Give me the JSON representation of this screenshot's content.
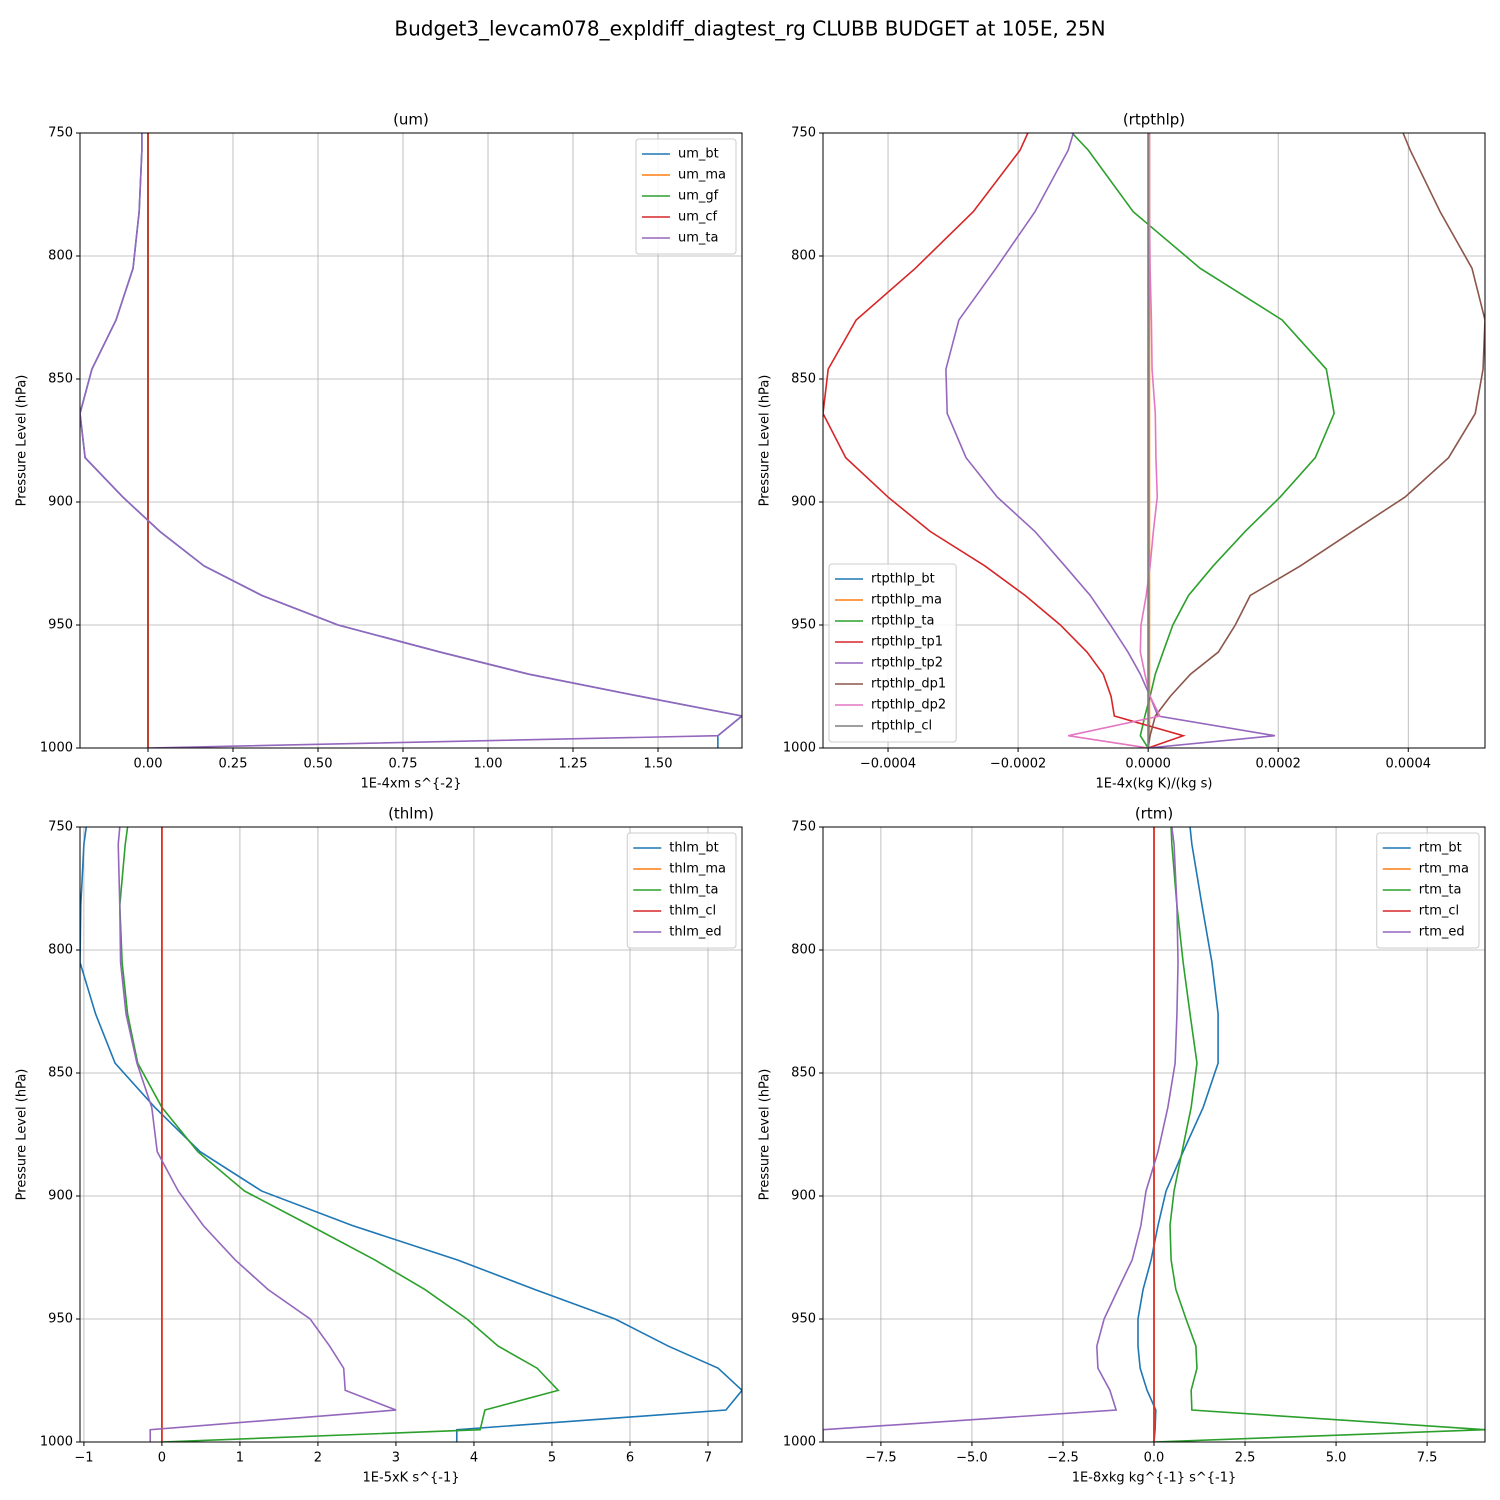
{
  "title": "Budget3_levcam078_expldiff_diagtest_rg CLUBB BUDGET at 105E, 25N",
  "chart_data": [
    {
      "type": "line",
      "title": "(um)",
      "x_label": "1E-4xm s^{-2}",
      "y_label": "Pressure Level (hPa)",
      "xlim": [
        -0.2,
        1.747
      ],
      "ylim": [
        1000,
        750
      ],
      "xticks": [
        {
          "value": 0,
          "label": "0.00"
        },
        {
          "value": 0.25,
          "label": "0.25"
        },
        {
          "value": 0.5,
          "label": "0.50"
        },
        {
          "value": 0.75,
          "label": "0.75"
        },
        {
          "value": 1,
          "label": "1.00"
        },
        {
          "value": 1.25,
          "label": "1.25"
        },
        {
          "value": 1.5,
          "label": "1.50"
        }
      ],
      "yticks": [
        750,
        800,
        850,
        900,
        950,
        1000
      ],
      "grid": true,
      "legend": "upper right",
      "y": [
        750,
        757,
        782,
        805,
        826,
        846,
        864,
        882,
        898,
        912,
        926,
        938,
        950,
        961,
        970,
        979,
        987,
        995,
        1000
      ],
      "series": [
        {
          "name": "um_bt",
          "color": "#1f77b4",
          "values": [
            -0.018,
            -0.018,
            -0.026,
            -0.044,
            -0.094,
            -0.165,
            -0.2,
            -0.185,
            -0.074,
            0.035,
            0.165,
            0.335,
            0.559,
            0.859,
            1.12,
            1.447,
            1.747,
            1.676,
            1.676
          ]
        },
        {
          "name": "um_ma",
          "color": "#ff7f0e",
          "values": [
            0,
            0,
            0,
            0,
            0,
            0,
            0,
            0,
            0,
            0,
            0,
            0,
            0,
            0,
            0,
            0,
            0,
            0,
            0
          ]
        },
        {
          "name": "um_gf",
          "color": "#2ca02c",
          "values": [
            0,
            0,
            0,
            0,
            0,
            0,
            0,
            0,
            0,
            0,
            0,
            0,
            0,
            0,
            0,
            0,
            0,
            0,
            0
          ]
        },
        {
          "name": "um_cf",
          "color": "#d62728",
          "values": [
            0,
            0,
            0,
            0,
            0,
            0,
            0,
            0,
            0,
            0,
            0,
            0,
            0,
            0,
            0,
            0,
            0,
            0,
            0
          ]
        },
        {
          "name": "um_ta",
          "color": "#9467bd",
          "values": [
            -0.018,
            -0.018,
            -0.026,
            -0.044,
            -0.094,
            -0.165,
            -0.2,
            -0.185,
            -0.074,
            0.035,
            0.165,
            0.335,
            0.559,
            0.859,
            1.12,
            1.447,
            1.747,
            1.676,
            0
          ]
        }
      ]
    },
    {
      "type": "line",
      "title": "(rtpthlp)",
      "x_label": "1E-4x(kg K)/(kg s)",
      "y_label": "Pressure Level (hPa)",
      "xlim": [
        -0.0005,
        0.000518
      ],
      "ylim": [
        1000,
        750
      ],
      "xticks": [
        {
          "value": -0.0004,
          "label": "−0.0004"
        },
        {
          "value": -0.0002,
          "label": "−0.0002"
        },
        {
          "value": 0,
          "label": "0.0000"
        },
        {
          "value": 0.0002,
          "label": "0.0002"
        },
        {
          "value": 0.0004,
          "label": "0.0004"
        }
      ],
      "yticks": [
        750,
        800,
        850,
        900,
        950,
        1000
      ],
      "grid": true,
      "legend": "lower left",
      "y": [
        750,
        757,
        782,
        805,
        826,
        846,
        864,
        882,
        898,
        912,
        926,
        938,
        950,
        961,
        970,
        979,
        987,
        995,
        1000
      ],
      "series": [
        {
          "name": "rtpthlp_bt",
          "color": "#1f77b4",
          "values": [
            0,
            0,
            0,
            0,
            0,
            0,
            0,
            0,
            0,
            0,
            0,
            0,
            0,
            0,
            0,
            0,
            0,
            0,
            0
          ]
        },
        {
          "name": "rtpthlp_ma",
          "color": "#ff7f0e",
          "values": [
            2e-06,
            2e-06,
            2e-06,
            2e-06,
            2e-06,
            2e-06,
            2e-06,
            2e-06,
            2e-06,
            2e-06,
            2e-06,
            2e-06,
            2e-06,
            2e-06,
            2e-06,
            2e-06,
            2e-06,
            2e-06,
            0
          ]
        },
        {
          "name": "rtpthlp_ta",
          "color": "#2ca02c",
          "values": [
            -0.000117,
            -9.2e-05,
            -2.3e-05,
            8e-05,
            0.000206,
            0.000274,
            0.000286,
            0.000257,
            0.000203,
            0.000149,
            0.0001,
            6.2e-05,
            3.8e-05,
            2.3e-05,
            1.1e-05,
            3e-06,
            -5e-06,
            -1.2e-05,
            0
          ]
        },
        {
          "name": "rtpthlp_tp1",
          "color": "#d62728",
          "values": [
            -0.000185,
            -0.000197,
            -0.000269,
            -0.000358,
            -0.000449,
            -0.000492,
            -0.0005,
            -0.000465,
            -0.0004,
            -0.000335,
            -0.000251,
            -0.000189,
            -0.000135,
            -9.4e-05,
            -6.9e-05,
            -5.7e-05,
            -5.2e-05,
            5.4e-05,
            0
          ]
        },
        {
          "name": "rtpthlp_tp2",
          "color": "#9467bd",
          "values": [
            -0.000115,
            -0.000123,
            -0.000174,
            -0.000234,
            -0.000291,
            -0.000311,
            -0.000309,
            -0.00028,
            -0.000232,
            -0.000174,
            -0.000128,
            -8.9e-05,
            -5.8e-05,
            -3.1e-05,
            -1.2e-05,
            3e-06,
            1.5e-05,
            0.000195,
            0
          ]
        },
        {
          "name": "rtpthlp_dp1",
          "color": "#8c564b",
          "values": [
            0.000392,
            0.000403,
            0.000449,
            0.000498,
            0.000518,
            0.000515,
            0.000503,
            0.000462,
            0.000395,
            0.000314,
            0.000234,
            0.000157,
            0.000134,
            0.000108,
            6.5e-05,
            3.4e-05,
            1.1e-05,
            3e-06,
            0
          ]
        },
        {
          "name": "rtpthlp_dp2",
          "color": "#e377c2",
          "values": [
            2e-06,
            2e-06,
            2e-06,
            3e-06,
            5e-06,
            6e-06,
            1.1e-05,
            1.2e-05,
            1.4e-05,
            8e-06,
            3e-06,
            -3e-06,
            -1.1e-05,
            -1.2e-05,
            -5e-06,
            3e-06,
            1.8e-05,
            -0.000123,
            0
          ]
        },
        {
          "name": "rtpthlp_cl",
          "color": "#7f7f7f",
          "values": [
            0,
            0,
            0,
            0,
            0,
            0,
            0,
            0,
            0,
            0,
            0,
            0,
            0,
            0,
            0,
            0,
            0,
            0,
            0
          ]
        }
      ]
    },
    {
      "type": "line",
      "title": "(thlm)",
      "x_label": "1E-5xK s^{-1}",
      "y_label": "Pressure Level (hPa)",
      "xlim": [
        -1.05,
        7.436
      ],
      "ylim": [
        1000,
        750
      ],
      "xticks": [
        {
          "value": -1,
          "label": "−1"
        },
        0,
        1,
        2,
        3,
        4,
        5,
        6,
        7
      ],
      "yticks": [
        750,
        800,
        850,
        900,
        950,
        1000
      ],
      "grid": true,
      "legend": "upper right",
      "y": [
        750,
        757,
        782,
        805,
        826,
        846,
        864,
        882,
        898,
        912,
        926,
        938,
        950,
        961,
        970,
        979,
        987,
        995,
        1000
      ],
      "series": [
        {
          "name": "thlm_bt",
          "color": "#1f77b4",
          "values": [
            -0.97,
            -1.0,
            -1.04,
            -1.05,
            -0.85,
            -0.6,
            -0.09,
            0.49,
            1.28,
            2.44,
            3.79,
            4.78,
            5.81,
            6.49,
            7.13,
            7.436,
            7.23,
            3.78,
            3.78
          ]
        },
        {
          "name": "thlm_ma",
          "color": "#ff7f0e",
          "values": [
            0,
            0,
            0,
            0,
            0,
            0,
            0,
            0,
            0,
            0,
            0,
            0,
            0,
            0,
            0,
            0,
            0,
            0,
            0
          ]
        },
        {
          "name": "thlm_ta",
          "color": "#2ca02c",
          "values": [
            -0.44,
            -0.47,
            -0.54,
            -0.51,
            -0.44,
            -0.31,
            0,
            0.46,
            1.06,
            1.9,
            2.73,
            3.37,
            3.91,
            4.31,
            4.81,
            5.08,
            4.14,
            4.08,
            0
          ]
        },
        {
          "name": "thlm_cl",
          "color": "#d62728",
          "values": [
            0,
            0,
            0,
            0,
            0,
            0,
            0,
            0,
            0,
            0,
            0,
            0,
            0,
            0,
            0,
            0,
            0,
            0,
            0
          ]
        },
        {
          "name": "thlm_ed",
          "color": "#9467bd",
          "values": [
            -0.54,
            -0.56,
            -0.54,
            -0.53,
            -0.46,
            -0.32,
            -0.13,
            -0.06,
            0.21,
            0.53,
            0.94,
            1.36,
            1.9,
            2.15,
            2.33,
            2.35,
            3.0,
            -0.15,
            -0.15
          ]
        }
      ]
    },
    {
      "type": "line",
      "title": "(rtm)",
      "x_label": "1E-8xkg kg^{-1} s^{-1}",
      "y_label": "Pressure Level (hPa)",
      "xlim": [
        -9.09,
        9.09
      ],
      "ylim": [
        1000,
        750
      ],
      "xticks": [
        {
          "value": -7.5,
          "label": "−7.5"
        },
        {
          "value": -5,
          "label": "−5.0"
        },
        {
          "value": -2.5,
          "label": "−2.5"
        },
        {
          "value": 0,
          "label": "0.0"
        },
        {
          "value": 2.5,
          "label": "2.5"
        },
        {
          "value": 5,
          "label": "5.0"
        },
        {
          "value": 7.5,
          "label": "7.5"
        }
      ],
      "yticks": [
        750,
        800,
        850,
        900,
        950,
        1000
      ],
      "grid": true,
      "legend": "upper right",
      "y": [
        750,
        757,
        782,
        805,
        826,
        846,
        864,
        882,
        898,
        912,
        926,
        938,
        950,
        961,
        970,
        979,
        987,
        995,
        1000
      ],
      "series": [
        {
          "name": "rtm_bt",
          "color": "#1f77b4",
          "values": [
            0.99,
            1.04,
            1.32,
            1.59,
            1.76,
            1.76,
            1.35,
            0.8,
            0.33,
            0.11,
            -0.08,
            -0.3,
            -0.44,
            -0.44,
            -0.38,
            -0.19,
            0.05,
            0.03,
            0
          ]
        },
        {
          "name": "rtm_ma",
          "color": "#ff7f0e",
          "values": [
            0,
            0,
            0,
            0,
            0,
            0,
            0,
            0,
            0,
            0,
            0,
            0,
            0,
            0,
            0,
            0,
            0,
            0,
            0
          ]
        },
        {
          "name": "rtm_ta",
          "color": "#2ca02c",
          "values": [
            0.47,
            0.49,
            0.63,
            0.8,
            0.99,
            1.18,
            1.02,
            0.77,
            0.55,
            0.44,
            0.47,
            0.6,
            0.88,
            1.15,
            1.18,
            1.02,
            1.04,
            9.09,
            0
          ]
        },
        {
          "name": "rtm_cl",
          "color": "#d62728",
          "values": [
            0,
            0,
            0,
            0,
            0,
            0,
            0,
            0,
            0,
            0,
            0,
            0,
            0,
            0,
            0,
            0,
            0,
            0,
            0
          ]
        },
        {
          "name": "rtm_ed",
          "color": "#9467bd",
          "values": [
            0.49,
            0.55,
            0.63,
            0.66,
            0.63,
            0.58,
            0.38,
            0.11,
            -0.22,
            -0.36,
            -0.6,
            -0.99,
            -1.37,
            -1.57,
            -1.54,
            -1.21,
            -1.04,
            -9.09,
            -9.09
          ]
        }
      ]
    }
  ]
}
